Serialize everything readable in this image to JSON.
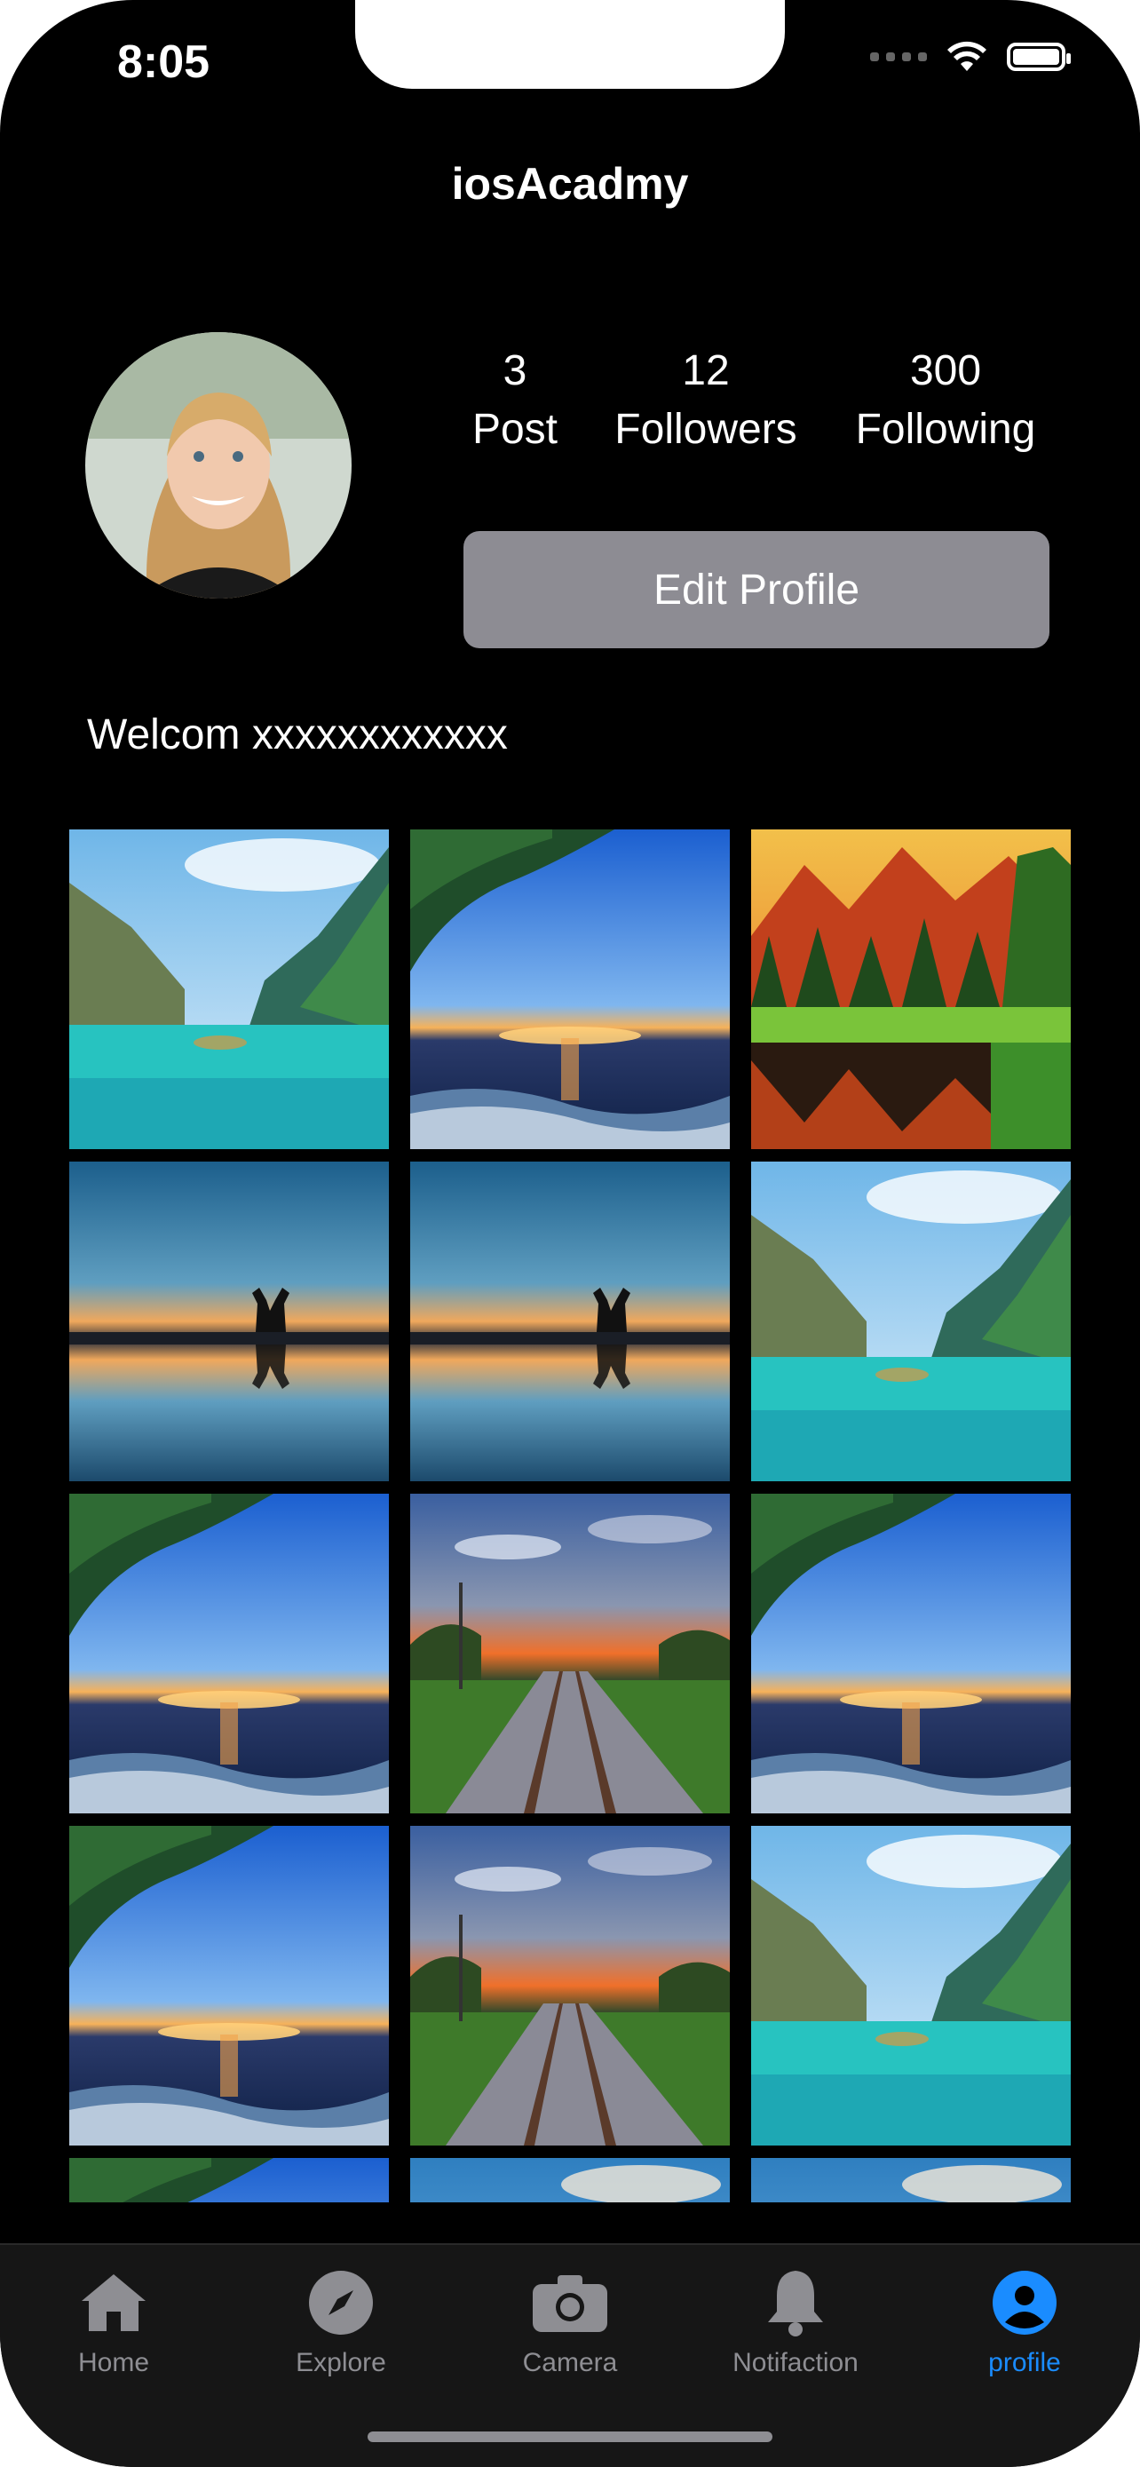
{
  "status_bar": {
    "time": "8:05"
  },
  "nav": {
    "title": "iosAcadmy"
  },
  "profile": {
    "stats": [
      {
        "value": "3",
        "label": "Post"
      },
      {
        "value": "12",
        "label": "Followers"
      },
      {
        "value": "300",
        "label": "Following"
      }
    ],
    "edit_button_label": "Edit Profile",
    "welcome_text": "Welcom xxxxxxxxxxxx"
  },
  "photo_grid": {
    "photos": [
      "lake-mountains",
      "ocean-sunset",
      "autumn-forest",
      "couple-sunset",
      "couple-sunset",
      "lake-mountains",
      "ocean-sunset",
      "railway-sunset",
      "ocean-sunset",
      "ocean-sunset",
      "railway-sunset",
      "lake-mountains",
      "ocean-sunset",
      "blue-sky",
      "blue-sky"
    ]
  },
  "tab_bar": {
    "tabs": [
      {
        "label": "Home",
        "icon": "house-icon"
      },
      {
        "label": "Explore",
        "icon": "compass-icon"
      },
      {
        "label": "Camera",
        "icon": "camera-icon"
      },
      {
        "label": "Notifaction",
        "icon": "bell-icon"
      },
      {
        "label": "profile",
        "icon": "person-circle-icon"
      }
    ],
    "active_tab": "profile"
  },
  "colors": {
    "background": "#000000",
    "button": "#8d8c93",
    "accent": "#1a8cff",
    "inactive": "#8e8e93"
  }
}
